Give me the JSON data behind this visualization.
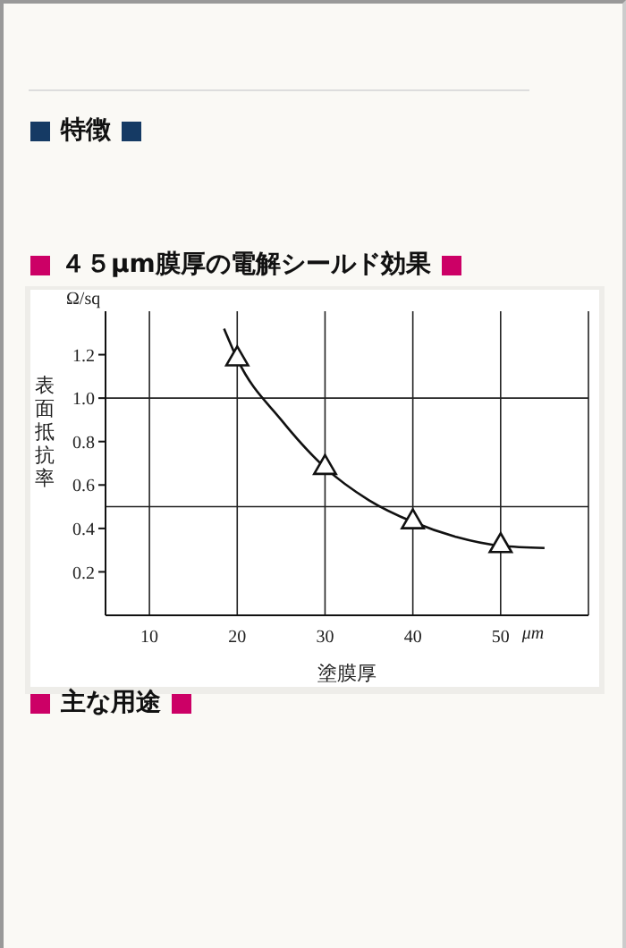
{
  "chart_data": {
    "type": "line",
    "title": "４５μm膜厚の電解シールド効果",
    "xlabel": "塗膜厚",
    "ylabel": "表面抵抗率",
    "annotations": [
      "特徴",
      "Ω/sq",
      "μm",
      "主な用途"
    ],
    "series": [
      {
        "color": "#111111",
        "marker": "none",
        "x": [
          18.5,
          20,
          25,
          30,
          35,
          40,
          45,
          50,
          55
        ],
        "values": [
          1.32,
          1.18,
          0.9,
          0.68,
          0.53,
          0.43,
          0.36,
          0.32,
          0.31
        ]
      },
      {
        "type": "scatter",
        "color": "#111111",
        "marker": "triangle",
        "x": [
          20,
          30,
          40,
          50
        ],
        "values": [
          1.18,
          0.68,
          0.43,
          0.32
        ]
      }
    ],
    "xlim": [
      5,
      60
    ],
    "xticks": [
      10,
      20,
      30,
      40,
      50
    ],
    "ylim": [
      0,
      1.4
    ],
    "yticks": [
      0.2,
      0.4,
      0.6,
      0.8,
      {
        "value": 1,
        "label": "1.0"
      },
      1.2
    ],
    "grid": "x",
    "ref_lines": [
      {
        "axis": "y",
        "value": 1,
        "label": null
      },
      {
        "axis": "y",
        "value": 0.5,
        "label": null
      }
    ]
  }
}
